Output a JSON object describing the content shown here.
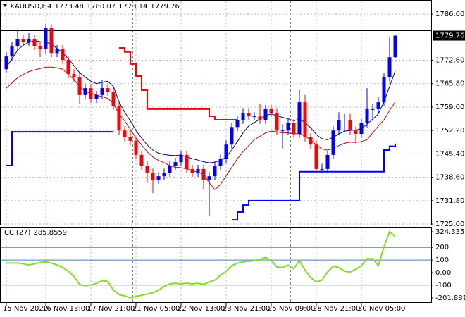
{
  "chart_data": {
    "type": "candlestick",
    "symbol": "XAUUSD,H4",
    "categories": [
      "15 Nov 2022",
      null,
      null,
      null,
      null,
      null,
      null,
      "16 Nov 13:00",
      null,
      null,
      null,
      null,
      null,
      null,
      null,
      "17 Nov 21:00",
      null,
      null,
      null,
      null,
      null,
      null,
      null,
      "21 Nov 05:00",
      null,
      null,
      null,
      null,
      null,
      null,
      null,
      "22 Nov 13:00",
      null,
      null,
      null,
      null,
      null,
      null,
      null,
      "23 Nov 21:00",
      null,
      null,
      null,
      null,
      null,
      null,
      null,
      "25 Nov 09:00",
      null,
      null,
      null,
      null,
      null,
      null,
      null,
      "28 Nov 21:00",
      null,
      null,
      null,
      null,
      null,
      null,
      null,
      "30 Nov 05:00",
      null,
      null,
      null,
      null,
      null,
      null
    ],
    "open": [
      1770.0,
      1773.7,
      1776.8,
      1778.8,
      1777.8,
      1778.8,
      1776.8,
      1775.8,
      1781.9,
      1774.7,
      1775.8,
      1772.7,
      1768.6,
      1767.6,
      1762.5,
      1764.5,
      1761.4,
      1762.5,
      1764.5,
      1763.5,
      1759.4,
      1752.2,
      1750.2,
      1749.2,
      1745.1,
      1742.0,
      1739.9,
      1737.9,
      1738.9,
      1739.9,
      1742.0,
      1743.0,
      1745.1,
      1741.0,
      1739.9,
      1741.0,
      1737.9,
      1738.9,
      1742.0,
      1744.0,
      1748.1,
      1753.2,
      1755.3,
      1757.3,
      1756.3,
      1756.3,
      1755.3,
      1758.4,
      1757.3,
      1752.2,
      1752.2,
      1754.3,
      1751.2,
      1760.4,
      1750.2,
      1748.1,
      1741.0,
      1741.0,
      1745.1,
      1752.2,
      1755.3,
      1755.3,
      1752.2,
      1751.2,
      1754.3,
      1758.4,
      1758.4,
      1760.4,
      1767.6,
      1773.48
    ],
    "high": [
      1775.0,
      1778.0,
      1781.5,
      1780.0,
      1780.5,
      1780.0,
      1778.0,
      1783.1,
      1783.1,
      1777.0,
      1777.0,
      1773.9,
      1770.0,
      1768.8,
      1765.7,
      1765.7,
      1763.7,
      1766.8,
      1765.7,
      1764.7,
      1760.6,
      1753.4,
      1752.6,
      1750.4,
      1746.3,
      1743.2,
      1741.1,
      1740.1,
      1741.1,
      1743.2,
      1744.2,
      1746.3,
      1746.3,
      1742.2,
      1742.2,
      1742.2,
      1740.1,
      1743.2,
      1745.2,
      1749.3,
      1754.4,
      1756.5,
      1758.5,
      1758.5,
      1757.5,
      1760.0,
      1759.6,
      1759.6,
      1758.5,
      1754.0,
      1755.5,
      1755.5,
      1764.0,
      1762.5,
      1751.4,
      1749.3,
      1742.5,
      1746.3,
      1753.4,
      1757.5,
      1757.0,
      1757.0,
      1753.4,
      1755.5,
      1764.5,
      1760.0,
      1762.0,
      1768.8,
      1779.5,
      1780.07
    ],
    "low": [
      1768.8,
      1772.5,
      1775.6,
      1776.6,
      1776.6,
      1775.6,
      1773.5,
      1774.6,
      1773.5,
      1773.5,
      1771.5,
      1767.4,
      1766.4,
      1760.0,
      1761.3,
      1760.2,
      1760.2,
      1761.3,
      1762.3,
      1758.2,
      1751.0,
      1749.0,
      1748.0,
      1743.9,
      1740.8,
      1737.0,
      1734.0,
      1736.7,
      1737.7,
      1738.7,
      1740.8,
      1741.8,
      1739.8,
      1738.7,
      1738.7,
      1735.0,
      1727.5,
      1737.7,
      1740.8,
      1742.8,
      1746.9,
      1752.0,
      1754.1,
      1755.1,
      1755.1,
      1754.1,
      1754.1,
      1756.1,
      1751.0,
      1747.0,
      1751.0,
      1750.0,
      1750.0,
      1749.0,
      1746.9,
      1739.8,
      1739.8,
      1739.8,
      1743.9,
      1751.0,
      1752.0,
      1751.0,
      1748.5,
      1750.0,
      1753.1,
      1755.0,
      1757.2,
      1759.2,
      1766.4,
      1773.14
    ],
    "close": [
      1773.7,
      1776.8,
      1778.8,
      1777.8,
      1778.8,
      1776.8,
      1775.8,
      1781.9,
      1774.7,
      1775.8,
      1772.7,
      1768.6,
      1767.6,
      1762.5,
      1764.5,
      1761.4,
      1762.5,
      1764.5,
      1763.5,
      1759.4,
      1752.2,
      1750.2,
      1749.2,
      1745.1,
      1742.0,
      1739.9,
      1737.9,
      1738.9,
      1739.9,
      1742.0,
      1743.0,
      1745.1,
      1741.0,
      1739.9,
      1741.0,
      1737.9,
      1738.9,
      1742.0,
      1744.0,
      1748.1,
      1753.2,
      1755.3,
      1757.3,
      1756.3,
      1756.3,
      1755.3,
      1758.4,
      1757.3,
      1752.2,
      1752.2,
      1754.3,
      1751.2,
      1760.4,
      1750.2,
      1748.1,
      1741.0,
      1741.0,
      1745.1,
      1752.2,
      1755.3,
      1755.3,
      1752.2,
      1751.2,
      1754.3,
      1758.4,
      1758.4,
      1760.4,
      1767.6,
      1773.48,
      1779.76
    ],
    "up_color": "#0000ff",
    "down_color": "#ff0000",
    "ylim": [
      1724.6,
      1789.7
    ],
    "yticks": [
      {
        "value": 1786,
        "label": "1786.00"
      },
      {
        "value": 1772.6,
        "label": "1772.60"
      },
      {
        "value": 1765.8,
        "label": "1765.80"
      },
      {
        "value": 1759,
        "label": "1759.00"
      },
      {
        "value": 1752.2,
        "label": "1752.20"
      },
      {
        "value": 1745.4,
        "label": "1745.40"
      },
      {
        "value": 1738.6,
        "label": "1738.60"
      },
      {
        "value": 1731.8,
        "label": "1731.80"
      },
      {
        "value": 1725,
        "label": "1725.00"
      }
    ],
    "grid": true,
    "hline": 1781.3,
    "series": [
      {
        "color": "#000080",
        "width": 1,
        "step": false,
        "values": [
          1770.6,
          1773,
          1775.5,
          1777,
          1777.8,
          1778.3,
          1778,
          1777.8,
          1777.4,
          1776,
          1774.8,
          1773,
          1771,
          1769,
          1767.7,
          1766.5,
          1765.8,
          1766.2,
          1766.5,
          1765,
          1760.5,
          1757.5,
          1755,
          1752.2,
          1750,
          1748,
          1746.5,
          1745.6,
          1745.2,
          1745,
          1744.9,
          1745.1,
          1744.5,
          1744,
          1743.6,
          1743.1,
          1742.8,
          1743,
          1743.5,
          1744.5,
          1746.5,
          1749,
          1751.5,
          1753.5,
          1754.5,
          1755.5,
          1756.5,
          1757,
          1756.5,
          1756,
          1755.6,
          1755,
          1755.5,
          1754.5,
          1753,
          1751,
          1749.8,
          1749.5,
          1750.2,
          1751.2,
          1752,
          1752.2,
          1752.3,
          1752.8,
          1754,
          1755.5,
          1757,
          1760.5,
          1765,
          1769.5
        ]
      },
      {
        "color": "#cc0000",
        "width": 1,
        "step": false,
        "values": [
          1764.5,
          1766,
          1767.5,
          1768.5,
          1769.3,
          1769.8,
          1770.2,
          1770.6,
          1770.6,
          1770.4,
          1770,
          1768.5,
          1767,
          1765,
          1763.5,
          1763,
          1762.5,
          1762,
          1761.5,
          1760,
          1757,
          1755,
          1752.5,
          1750,
          1748,
          1746,
          1744.5,
          1743.5,
          1742.8,
          1742,
          1741.5,
          1741.4,
          1741,
          1740.5,
          1740,
          1739.5,
          1737,
          1735,
          1736.5,
          1739,
          1741.5,
          1744,
          1746,
          1747.8,
          1749.5,
          1750.5,
          1751.5,
          1752,
          1751.8,
          1751.5,
          1751.5,
          1751.2,
          1751.3,
          1750.5,
          1749.5,
          1748,
          1746.8,
          1746.5,
          1747,
          1747.8,
          1748.5,
          1748.8,
          1748.7,
          1749,
          1749.5,
          1751.5,
          1753.5,
          1755.3,
          1758,
          1760.5
        ]
      },
      {
        "color": "#ff0000",
        "width": 2,
        "step": true,
        "values": [
          null,
          null,
          null,
          null,
          null,
          null,
          null,
          null,
          null,
          null,
          null,
          null,
          null,
          null,
          null,
          null,
          null,
          null,
          null,
          null,
          1776.2,
          1775,
          1771.5,
          1768,
          1763.9,
          1758.4,
          1758.4,
          1758.4,
          1758.4,
          1758.4,
          1758.4,
          1758.4,
          1758.4,
          1758.4,
          1758.4,
          1758.4,
          1756.3,
          1755.3,
          1755.3,
          1755.3,
          1755.3,
          1755.3,
          null,
          null,
          null,
          null,
          null,
          null,
          null,
          null,
          null,
          null,
          null,
          null,
          null,
          null,
          null,
          null,
          null,
          null,
          null,
          null,
          null,
          null,
          null,
          null,
          null,
          null,
          null,
          null
        ]
      },
      {
        "color": "#0000ff",
        "width": 2,
        "step": true,
        "values": [
          1742,
          1751.8,
          1751.8,
          1751.8,
          1751.8,
          1751.8,
          1751.8,
          1751.8,
          1751.8,
          1751.8,
          1751.8,
          1751.8,
          1751.8,
          1751.8,
          1751.8,
          1751.8,
          1751.8,
          1751.8,
          1751.8,
          1751.8,
          null,
          null,
          null,
          null,
          null,
          null,
          null,
          null,
          null,
          null,
          null,
          null,
          null,
          null,
          null,
          null,
          null,
          null,
          null,
          null,
          1726.2,
          1728.5,
          1730.5,
          1731.8,
          1731.8,
          1731.8,
          1731.8,
          1731.8,
          1731.8,
          1731.8,
          1731.8,
          1731.8,
          1740.2,
          1740.2,
          1740.2,
          1740.2,
          1740.2,
          1740.2,
          1740.2,
          1740.2,
          1740.2,
          1740.2,
          1740.2,
          1740.2,
          1740.2,
          1740.2,
          1740.2,
          1746.5,
          1747.6,
          1748.4
        ]
      }
    ],
    "indicator": {
      "name": "CCI(27)",
      "color": "#80e020",
      "values": [
        76,
        76,
        76,
        70,
        60,
        70,
        80,
        86,
        75,
        60,
        40,
        10,
        -30,
        -95,
        -105,
        -100,
        -85,
        -65,
        -70,
        -140,
        -175,
        -185,
        -201.8811,
        -190,
        -180,
        -170,
        -160,
        -140,
        -110,
        -90,
        -85,
        -90,
        -85,
        -90,
        -85,
        -95,
        -75,
        -60,
        -20,
        10,
        55,
        75,
        85,
        90,
        95,
        105,
        120,
        95,
        45,
        40,
        60,
        30,
        95,
        20,
        -40,
        -75,
        -60,
        5,
        50,
        40,
        10,
        5,
        25,
        55,
        110,
        110,
        55,
        205,
        324.3354,
        285.8559
      ],
      "ylim": [
        -201.8811,
        324.3354
      ],
      "yticks": [
        324.3354,
        200,
        100,
        {
          "value": 0,
          "label": "0.00"
        },
        -100,
        -201.8811
      ],
      "levels": [
        200,
        100,
        -100
      ],
      "level_color": "#4682b4"
    }
  }
}
